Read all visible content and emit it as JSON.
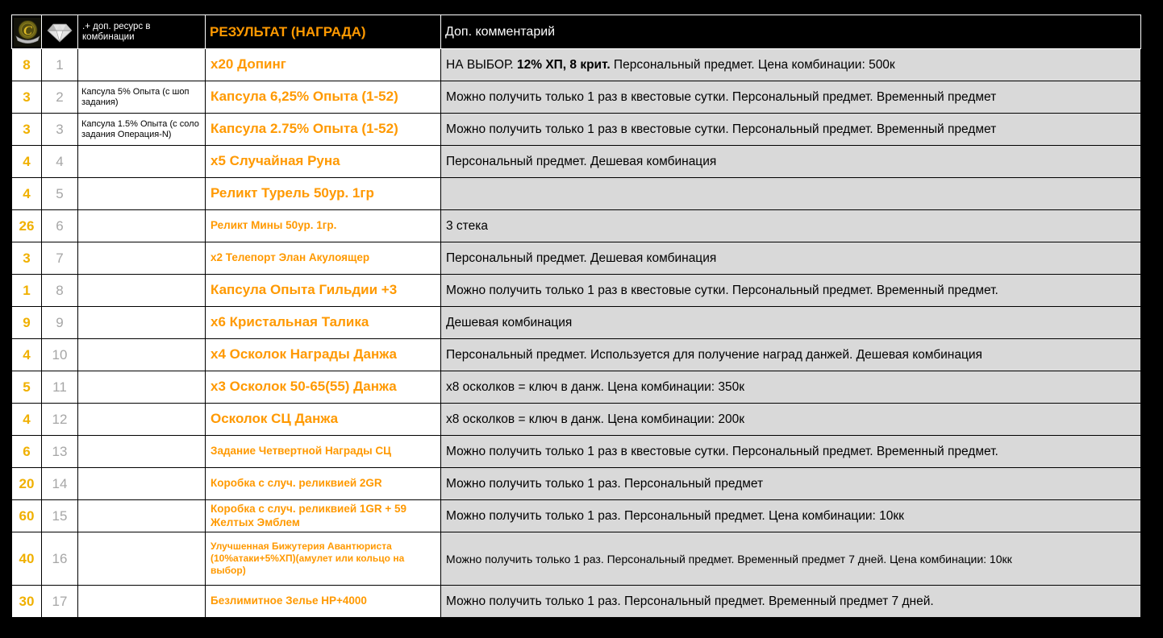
{
  "colors": {
    "qty": "#f0b000",
    "index": "#a6a6a6",
    "reward": "#ff9900",
    "comment_bg": "#d9d9d9",
    "header_bg": "#000000",
    "header_text": "#ffffff"
  },
  "header": {
    "emblem_icon": "guild-emblem-icon",
    "diamond_icon": "diamond-icon",
    "resource_label": ".+ доп. ресурс в комбинации",
    "result_label": "РЕЗУЛЬТАТ (НАГРАДА)",
    "comment_label": "Доп. комментарий"
  },
  "table": {
    "rows": [
      {
        "qty": "8",
        "index": "1",
        "resource": "",
        "reward": "х20 Допинг",
        "reward_size": "lg",
        "comment_parts": [
          {
            "text": "НА ВЫБОР. ",
            "bold": false
          },
          {
            "text": "12% ХП, 8 крит.",
            "bold": true
          },
          {
            "text": " Персональный предмет. Цена комбинации: 500к",
            "bold": false
          }
        ]
      },
      {
        "qty": "3",
        "index": "2",
        "resource": "Капсула 5% Опыта (с шоп задания)",
        "reward": "Капсула 6,25% Опыта (1-52)",
        "reward_size": "lg",
        "comment_parts": [
          {
            "text": "Можно получить только 1 раз в квестовые сутки. Персональный предмет. Временный предмет",
            "bold": false
          }
        ]
      },
      {
        "qty": "3",
        "index": "3",
        "resource": "Капсула 1.5% Опыта (с соло задания Операция-N)",
        "reward": "Капсула 2.75% Опыта (1-52)",
        "reward_size": "lg",
        "comment_parts": [
          {
            "text": "Можно получить только 1 раз в квестовые сутки. Персональный предмет. Временный предмет",
            "bold": false
          }
        ]
      },
      {
        "qty": "4",
        "index": "4",
        "resource": "",
        "reward": "х5 Случайная Руна",
        "reward_size": "lg",
        "comment_parts": [
          {
            "text": "Персональный предмет. Дешевая комбинация",
            "bold": false
          }
        ]
      },
      {
        "qty": "4",
        "index": "5",
        "resource": "",
        "reward": "Реликт Турель 50ур. 1гр",
        "reward_size": "lg",
        "comment_parts": []
      },
      {
        "qty": "26",
        "index": "6",
        "resource": "",
        "reward": "Реликт Мины 50ур. 1гр.",
        "reward_size": "md",
        "comment_parts": [
          {
            "text": "3 стека",
            "bold": false
          }
        ]
      },
      {
        "qty": "3",
        "index": "7",
        "resource": "",
        "reward": "х2 Телепорт Элан Акулоящер",
        "reward_size": "md",
        "comment_parts": [
          {
            "text": "Персональный предмет. Дешевая комбинация",
            "bold": false
          }
        ]
      },
      {
        "qty": "1",
        "index": "8",
        "resource": "",
        "reward": "Капсула Опыта Гильдии +3",
        "reward_size": "lg",
        "comment_parts": [
          {
            "text": "Можно получить только 1 раз в квестовые сутки. Персональный предмет. Временный предмет.",
            "bold": false
          }
        ]
      },
      {
        "qty": "9",
        "index": "9",
        "resource": "",
        "reward": "х6 Кристальная Талика",
        "reward_size": "lg",
        "comment_parts": [
          {
            "text": "Дешевая комбинация",
            "bold": false
          }
        ]
      },
      {
        "qty": "4",
        "index": "10",
        "resource": "",
        "reward": "х4 Осколок Награды Данжа",
        "reward_size": "lg",
        "comment_parts": [
          {
            "text": "Персональный предмет. Используется для получение наград данжей. Дешевая комбинация",
            "bold": false
          }
        ]
      },
      {
        "qty": "5",
        "index": "11",
        "resource": "",
        "reward": "х3 Осколок 50-65(55) Данжа",
        "reward_size": "lg",
        "comment_parts": [
          {
            "text": "х8 осколков = ключ в данж. Цена комбинации: 350к",
            "bold": false
          }
        ]
      },
      {
        "qty": "4",
        "index": "12",
        "resource": "",
        "reward": "Осколок СЦ Данжа",
        "reward_size": "lg",
        "comment_parts": [
          {
            "text": "х8 осколков = ключ в данж. Цена комбинации: 200к",
            "bold": false
          }
        ]
      },
      {
        "qty": "6",
        "index": "13",
        "resource": "",
        "reward": "Задание Четвертной Награды СЦ",
        "reward_size": "md",
        "comment_parts": [
          {
            "text": "Можно получить только 1 раз в квестовые сутки. Персональный предмет. Временный предмет.",
            "bold": false
          }
        ]
      },
      {
        "qty": "20",
        "index": "14",
        "resource": "",
        "reward": "Коробка с случ. реликвией 2GR",
        "reward_size": "md",
        "comment_parts": [
          {
            "text": "Можно получить только 1 раз. Персональный предмет",
            "bold": false
          }
        ]
      },
      {
        "qty": "60",
        "index": "15",
        "resource": "",
        "reward": "Коробка с случ. реликвией 1GR + 59 Желтых Эмблем",
        "reward_size": "md",
        "comment_parts": [
          {
            "text": "Можно получить только 1 раз. Персональный предмет. Цена комбинации: 10кк",
            "bold": false
          }
        ]
      },
      {
        "qty": "40",
        "index": "16",
        "resource": "",
        "reward": "Улучшенная Бижутерия Авантюриста (10%атаки+5%ХП)(амулет или кольцо на выбор)",
        "reward_size": "sm",
        "comment_size": "sm",
        "comment_parts": [
          {
            "text": "Можно получить только 1 раз. Персональный предмет. Временный предмет 7 дней. Цена комбинации: 10кк",
            "bold": false
          }
        ]
      },
      {
        "qty": "30",
        "index": "17",
        "resource": "",
        "reward": "Безлимитное Зелье HP+4000",
        "reward_size": "md",
        "comment_parts": [
          {
            "text": "Можно получить только 1 раз. Персональный предмет. Временный предмет 7 дней.",
            "bold": false
          }
        ]
      }
    ]
  }
}
